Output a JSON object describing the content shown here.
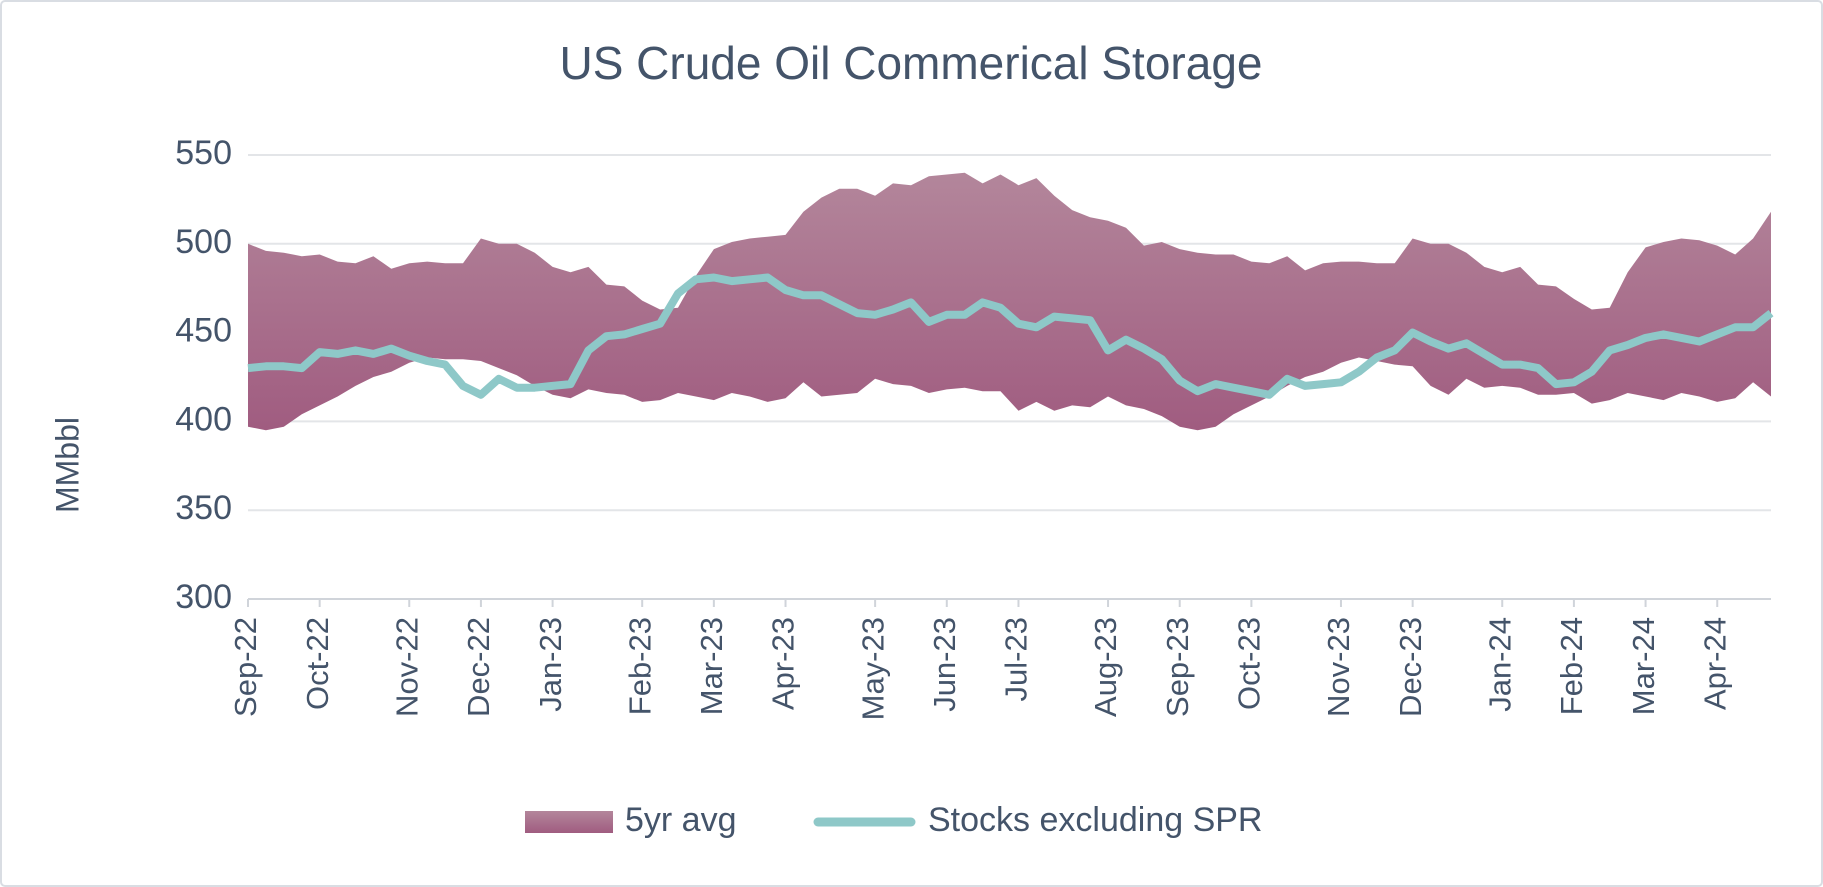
{
  "chart_data": {
    "type": "range_line",
    "title": "US Crude Oil Commerical Storage",
    "y_label": "MMbbl",
    "categories": [
      "Sep-22",
      null,
      null,
      null,
      "Oct-22",
      null,
      null,
      null,
      null,
      "Nov-22",
      null,
      null,
      null,
      "Dec-22",
      null,
      null,
      null,
      "Jan-23",
      null,
      null,
      null,
      null,
      "Feb-23",
      null,
      null,
      null,
      "Mar-23",
      null,
      null,
      null,
      "Apr-23",
      null,
      null,
      null,
      null,
      "May-23",
      null,
      null,
      null,
      "Jun-23",
      null,
      null,
      null,
      "Jul-23",
      null,
      null,
      null,
      null,
      "Aug-23",
      null,
      null,
      null,
      "Sep-23",
      null,
      null,
      null,
      "Oct-23",
      null,
      null,
      null,
      null,
      "Nov-23",
      null,
      null,
      null,
      "Dec-23",
      null,
      null,
      null,
      null,
      "Jan-24",
      null,
      null,
      null,
      "Feb-24",
      null,
      null,
      null,
      "Mar-24",
      null,
      null,
      null,
      "Apr-24",
      null,
      null,
      null
    ],
    "series": [
      {
        "name": "5yr avg",
        "kind": "range",
        "color": "#a8708f",
        "low": [
          397,
          395,
          397,
          404,
          409,
          414,
          420,
          425,
          428,
          433,
          436,
          435,
          435,
          434,
          430,
          426,
          420,
          415,
          413,
          418,
          416,
          415,
          411,
          412,
          416,
          414,
          412,
          416,
          414,
          411,
          413,
          422,
          414,
          415,
          416,
          424,
          421,
          420,
          416,
          418,
          419,
          417,
          417,
          406,
          411,
          406,
          409,
          408,
          414,
          409,
          407,
          403,
          397,
          395,
          397,
          404,
          409,
          414,
          420,
          425,
          428,
          433,
          436,
          434,
          432,
          431,
          420,
          415,
          424,
          419,
          420,
          419,
          415,
          415,
          416,
          410,
          412,
          416,
          414,
          412,
          416,
          414,
          411,
          413,
          422,
          414
        ],
        "high": [
          500,
          496,
          495,
          493,
          494,
          490,
          489,
          493,
          486,
          489,
          490,
          489,
          489,
          503,
          500,
          500,
          495,
          487,
          484,
          487,
          477,
          476,
          468,
          463,
          464,
          482,
          497,
          501,
          503,
          504,
          505,
          518,
          526,
          531,
          531,
          527,
          534,
          533,
          538,
          539,
          540,
          534,
          539,
          533,
          537,
          527,
          519,
          515,
          513,
          509,
          499,
          501,
          497,
          495,
          494,
          494,
          490,
          489,
          493,
          485,
          489,
          490,
          490,
          489,
          489,
          503,
          500,
          500,
          495,
          487,
          484,
          487,
          477,
          476,
          469,
          463,
          464,
          484,
          498,
          501,
          503,
          502,
          499,
          494,
          503,
          518
        ]
      },
      {
        "name": "Stocks excluding SPR",
        "kind": "line",
        "color": "#8ec8c8",
        "values": [
          430,
          431,
          431,
          430,
          439,
          438,
          440,
          438,
          441,
          437,
          434,
          432,
          420,
          415,
          424,
          419,
          419,
          420,
          421,
          440,
          448,
          449,
          452,
          455,
          472,
          480,
          481,
          479,
          480,
          481,
          474,
          471,
          471,
          466,
          461,
          460,
          463,
          467,
          456,
          460,
          460,
          467,
          464,
          455,
          453,
          459,
          458,
          457,
          440,
          446,
          441,
          435,
          423,
          417,
          421,
          419,
          417,
          415,
          424,
          420,
          421,
          422,
          428,
          436,
          440,
          450,
          445,
          441,
          444,
          438,
          432,
          432,
          430,
          421,
          422,
          428,
          440,
          443,
          447,
          449,
          447,
          445,
          449,
          453,
          453,
          461
        ]
      }
    ],
    "ylim": [
      300,
      550
    ],
    "yticks": [
      300,
      350,
      400,
      450,
      500,
      550
    ],
    "grid": true,
    "legend": "bottom"
  }
}
